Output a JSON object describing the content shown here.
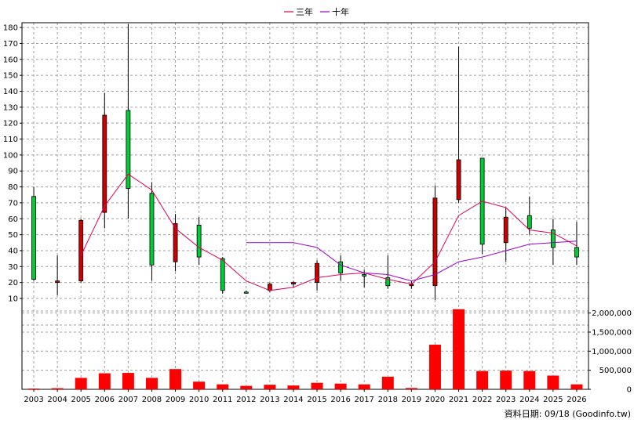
{
  "chart_data": {
    "type": "candlestick",
    "legend": {
      "placement": "top-center",
      "items": [
        {
          "label": "三年",
          "color": "#e0005a"
        },
        {
          "label": "十年",
          "color": "#9900cc"
        }
      ]
    },
    "x": [
      "2003",
      "2004",
      "2005",
      "2006",
      "2007",
      "2008",
      "2009",
      "2010",
      "2011",
      "2012",
      "2013",
      "2014",
      "2015",
      "2016",
      "2017",
      "2018",
      "2019",
      "2020",
      "2021",
      "2022",
      "2023",
      "2024",
      "2025",
      "2026"
    ],
    "price": {
      "ylim": [
        10,
        183
      ],
      "ticks": [
        10,
        20,
        30,
        40,
        50,
        60,
        70,
        80,
        90,
        100,
        110,
        120,
        130,
        140,
        150,
        160,
        170,
        180
      ],
      "grid": true,
      "up_color": "#00cc33",
      "down_color": "#cc0000",
      "candles": [
        {
          "open": 22,
          "close": 74,
          "high": 80,
          "low": 21
        },
        {
          "open": 21,
          "close": 20,
          "high": 37,
          "low": 12
        },
        {
          "open": 59,
          "close": 21,
          "high": 60,
          "low": 20
        },
        {
          "open": 125,
          "close": 64,
          "high": 139,
          "low": 54
        },
        {
          "open": 79,
          "close": 128,
          "high": 182,
          "low": 60
        },
        {
          "open": 31,
          "close": 76,
          "high": 83,
          "low": 21
        },
        {
          "open": 57,
          "close": 33,
          "high": 63,
          "low": 27
        },
        {
          "open": 36,
          "close": 56,
          "high": 61,
          "low": 31
        },
        {
          "open": 15,
          "close": 35,
          "high": 36,
          "low": 13
        },
        {
          "open": 14,
          "close": 14,
          "high": 15,
          "low": 13
        },
        {
          "open": 19,
          "close": 15,
          "high": 20,
          "low": 14
        },
        {
          "open": 20,
          "close": 19,
          "high": 21,
          "low": 17
        },
        {
          "open": 32,
          "close": 20,
          "high": 34,
          "low": 15
        },
        {
          "open": 26,
          "close": 33,
          "high": 37,
          "low": 21
        },
        {
          "open": 24,
          "close": 25,
          "high": 28,
          "low": 17
        },
        {
          "open": 18,
          "close": 23,
          "high": 37,
          "low": 16
        },
        {
          "open": 19,
          "close": 18,
          "high": 21,
          "low": 16
        },
        {
          "open": 73,
          "close": 18,
          "high": 81,
          "low": 9
        },
        {
          "open": 97,
          "close": 72,
          "high": 168,
          "low": 70
        },
        {
          "open": 44,
          "close": 98,
          "high": 98,
          "low": 38
        },
        {
          "open": 61,
          "close": 45,
          "high": 67,
          "low": 33
        },
        {
          "open": 54,
          "close": 62,
          "high": 74,
          "low": 50
        },
        {
          "open": 42,
          "close": 53,
          "high": 60,
          "low": 31
        },
        {
          "open": 36,
          "close": 42,
          "high": 58,
          "low": 31
        }
      ],
      "series": [
        {
          "name": "三年",
          "color": "#e0005a",
          "values": [
            null,
            null,
            37,
            68,
            88,
            78,
            54,
            42,
            34,
            21,
            15,
            17,
            23,
            25,
            26,
            22,
            19,
            33,
            62,
            71,
            67,
            53,
            51,
            43
          ]
        },
        {
          "name": "十年",
          "color": "#9900cc",
          "values": [
            null,
            null,
            null,
            null,
            null,
            null,
            null,
            null,
            null,
            45,
            45,
            45,
            42,
            31,
            26,
            25,
            21,
            25,
            33,
            36,
            40,
            44,
            45,
            46
          ]
        }
      ]
    },
    "volume": {
      "ylim": [
        0,
        2300000
      ],
      "ticks": [
        0,
        500000,
        1000000,
        1500000,
        2000000
      ],
      "tick_labels": [
        "0",
        "500,000",
        "1,000,000",
        "1,500,000",
        "2,000,000"
      ],
      "color": "#ff0000",
      "values": [
        5000,
        30000,
        300000,
        420000,
        430000,
        300000,
        530000,
        200000,
        130000,
        90000,
        120000,
        100000,
        170000,
        150000,
        130000,
        330000,
        35000,
        1170000,
        2100000,
        480000,
        490000,
        480000,
        360000,
        130000
      ]
    }
  },
  "footer": {
    "source_note": "資料日期: 09/18 (Goodinfo.tw)"
  }
}
